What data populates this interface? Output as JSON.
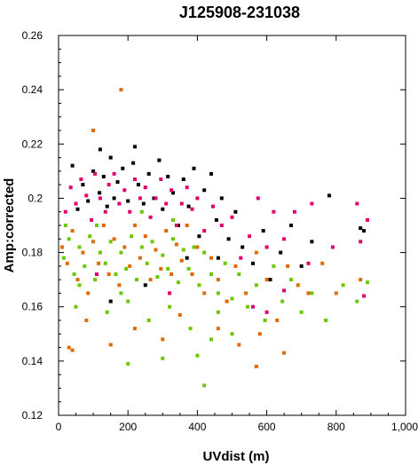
{
  "chart_data": {
    "type": "scatter",
    "title": "J125908-231038",
    "xlabel": "UVdist (m)",
    "ylabel": "Amp:corrected",
    "xlim": [
      0,
      1000
    ],
    "ylim": [
      0.12,
      0.26
    ],
    "x_ticks": [
      "0",
      "200",
      "400",
      "600",
      "800",
      "1,000"
    ],
    "y_ticks": [
      "0.12",
      "0.14",
      "0.16",
      "0.18",
      "0.2",
      "0.22",
      "0.24",
      "0.26"
    ],
    "grid": false,
    "legend": "none",
    "series": [
      {
        "color": "#000000",
        "points": [
          [
            40,
            0.212
          ],
          [
            55,
            0.196
          ],
          [
            70,
            0.205
          ],
          [
            85,
            0.199
          ],
          [
            100,
            0.21
          ],
          [
            118,
            0.202
          ],
          [
            130,
            0.208
          ],
          [
            140,
            0.197
          ],
          [
            150,
            0.215
          ],
          [
            160,
            0.2
          ],
          [
            170,
            0.206
          ],
          [
            185,
            0.211
          ],
          [
            200,
            0.199
          ],
          [
            215,
            0.213
          ],
          [
            230,
            0.205
          ],
          [
            245,
            0.198
          ],
          [
            260,
            0.209
          ],
          [
            275,
            0.2
          ],
          [
            290,
            0.214
          ],
          [
            300,
            0.196
          ],
          [
            315,
            0.208
          ],
          [
            330,
            0.202
          ],
          [
            345,
            0.19
          ],
          [
            360,
            0.207
          ],
          [
            375,
            0.197
          ],
          [
            390,
            0.211
          ],
          [
            405,
            0.186
          ],
          [
            420,
            0.203
          ],
          [
            440,
            0.209
          ],
          [
            455,
            0.192
          ],
          [
            470,
            0.2
          ],
          [
            490,
            0.185
          ],
          [
            510,
            0.195
          ],
          [
            530,
            0.182
          ],
          [
            560,
            0.176
          ],
          [
            590,
            0.188
          ],
          [
            610,
            0.17
          ],
          [
            640,
            0.18
          ],
          [
            670,
            0.19
          ],
          [
            700,
            0.175
          ],
          [
            730,
            0.184
          ],
          [
            780,
            0.201
          ],
          [
            870,
            0.189
          ],
          [
            880,
            0.188
          ],
          [
            150,
            0.162
          ],
          [
            250,
            0.168
          ],
          [
            370,
            0.178
          ],
          [
            460,
            0.178
          ],
          [
            220,
            0.219
          ],
          [
            120,
            0.218
          ]
        ]
      },
      {
        "color": "#e0006a",
        "points": [
          [
            20,
            0.195
          ],
          [
            35,
            0.204
          ],
          [
            50,
            0.198
          ],
          [
            65,
            0.207
          ],
          [
            80,
            0.201
          ],
          [
            95,
            0.192
          ],
          [
            105,
            0.209
          ],
          [
            120,
            0.2
          ],
          [
            135,
            0.195
          ],
          [
            145,
            0.205
          ],
          [
            160,
            0.209
          ],
          [
            175,
            0.198
          ],
          [
            190,
            0.203
          ],
          [
            205,
            0.195
          ],
          [
            220,
            0.207
          ],
          [
            235,
            0.2
          ],
          [
            250,
            0.204
          ],
          [
            265,
            0.193
          ],
          [
            280,
            0.2
          ],
          [
            295,
            0.207
          ],
          [
            310,
            0.198
          ],
          [
            325,
            0.203
          ],
          [
            340,
            0.19
          ],
          [
            355,
            0.198
          ],
          [
            370,
            0.204
          ],
          [
            385,
            0.196
          ],
          [
            400,
            0.2
          ],
          [
            420,
            0.188
          ],
          [
            445,
            0.197
          ],
          [
            470,
            0.19
          ],
          [
            500,
            0.193
          ],
          [
            525,
            0.178
          ],
          [
            550,
            0.186
          ],
          [
            575,
            0.2
          ],
          [
            600,
            0.182
          ],
          [
            620,
            0.195
          ],
          [
            650,
            0.185
          ],
          [
            680,
            0.195
          ],
          [
            720,
            0.176
          ],
          [
            730,
            0.198
          ],
          [
            790,
            0.182
          ],
          [
            860,
            0.198
          ],
          [
            870,
            0.184
          ],
          [
            880,
            0.164
          ],
          [
            890,
            0.192
          ],
          [
            110,
            0.172
          ],
          [
            320,
            0.165
          ],
          [
            560,
            0.16
          ],
          [
            600,
            0.158
          ],
          [
            650,
            0.166
          ]
        ]
      },
      {
        "color": "#e06a00",
        "points": [
          [
            10,
            0.182
          ],
          [
            25,
            0.176
          ],
          [
            40,
            0.188
          ],
          [
            55,
            0.17
          ],
          [
            70,
            0.18
          ],
          [
            85,
            0.165
          ],
          [
            100,
            0.184
          ],
          [
            115,
            0.176
          ],
          [
            130,
            0.19
          ],
          [
            145,
            0.172
          ],
          [
            160,
            0.185
          ],
          [
            175,
            0.168
          ],
          [
            190,
            0.182
          ],
          [
            205,
            0.175
          ],
          [
            220,
            0.19
          ],
          [
            235,
            0.178
          ],
          [
            250,
            0.186
          ],
          [
            265,
            0.17
          ],
          [
            280,
            0.181
          ],
          [
            295,
            0.174
          ],
          [
            310,
            0.188
          ],
          [
            325,
            0.172
          ],
          [
            340,
            0.183
          ],
          [
            355,
            0.177
          ],
          [
            370,
            0.19
          ],
          [
            385,
            0.172
          ],
          [
            400,
            0.182
          ],
          [
            420,
            0.165
          ],
          [
            440,
            0.178
          ],
          [
            460,
            0.17
          ],
          [
            485,
            0.162
          ],
          [
            510,
            0.175
          ],
          [
            540,
            0.165
          ],
          [
            570,
            0.18
          ],
          [
            600,
            0.17
          ],
          [
            630,
            0.155
          ],
          [
            660,
            0.175
          ],
          [
            690,
            0.168
          ],
          [
            720,
            0.165
          ],
          [
            760,
            0.176
          ],
          [
            800,
            0.165
          ],
          [
            870,
            0.17
          ],
          [
            30,
            0.145
          ],
          [
            80,
            0.155
          ],
          [
            150,
            0.146
          ],
          [
            220,
            0.152
          ],
          [
            300,
            0.148
          ],
          [
            350,
            0.157
          ],
          [
            460,
            0.152
          ],
          [
            520,
            0.146
          ],
          [
            580,
            0.15
          ],
          [
            650,
            0.143
          ],
          [
            100,
            0.225
          ],
          [
            180,
            0.24
          ],
          [
            40,
            0.144
          ],
          [
            570,
            0.138
          ]
        ]
      },
      {
        "color": "#6ac800",
        "points": [
          [
            15,
            0.178
          ],
          [
            30,
            0.185
          ],
          [
            45,
            0.172
          ],
          [
            60,
            0.182
          ],
          [
            75,
            0.175
          ],
          [
            90,
            0.186
          ],
          [
            105,
            0.17
          ],
          [
            120,
            0.18
          ],
          [
            135,
            0.176
          ],
          [
            150,
            0.184
          ],
          [
            165,
            0.172
          ],
          [
            180,
            0.18
          ],
          [
            195,
            0.174
          ],
          [
            210,
            0.186
          ],
          [
            225,
            0.17
          ],
          [
            240,
            0.182
          ],
          [
            255,
            0.176
          ],
          [
            270,
            0.184
          ],
          [
            285,
            0.171
          ],
          [
            300,
            0.179
          ],
          [
            315,
            0.174
          ],
          [
            330,
            0.185
          ],
          [
            345,
            0.169
          ],
          [
            360,
            0.181
          ],
          [
            375,
            0.174
          ],
          [
            390,
            0.182
          ],
          [
            405,
            0.168
          ],
          [
            420,
            0.18
          ],
          [
            440,
            0.172
          ],
          [
            460,
            0.165
          ],
          [
            480,
            0.176
          ],
          [
            500,
            0.163
          ],
          [
            520,
            0.172
          ],
          [
            545,
            0.16
          ],
          [
            570,
            0.168
          ],
          [
            595,
            0.155
          ],
          [
            620,
            0.175
          ],
          [
            645,
            0.162
          ],
          [
            670,
            0.17
          ],
          [
            700,
            0.158
          ],
          [
            730,
            0.165
          ],
          [
            770,
            0.155
          ],
          [
            820,
            0.168
          ],
          [
            860,
            0.162
          ],
          [
            890,
            0.169
          ],
          [
            50,
            0.16
          ],
          [
            140,
            0.158
          ],
          [
            200,
            0.162
          ],
          [
            260,
            0.155
          ],
          [
            320,
            0.16
          ],
          [
            380,
            0.152
          ],
          [
            440,
            0.148
          ],
          [
            500,
            0.15
          ],
          [
            200,
            0.139
          ],
          [
            300,
            0.141
          ],
          [
            400,
            0.142
          ],
          [
            420,
            0.131
          ],
          [
            460,
            0.158
          ],
          [
            20,
            0.19
          ],
          [
            110,
            0.19
          ],
          [
            240,
            0.195
          ],
          [
            330,
            0.192
          ],
          [
            60,
            0.168
          ],
          [
            180,
            0.165
          ]
        ]
      }
    ]
  }
}
